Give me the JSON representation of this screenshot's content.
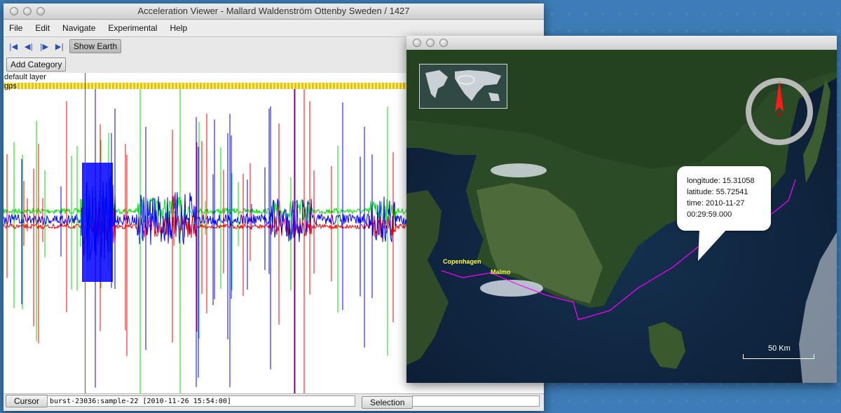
{
  "main_window": {
    "title": "Acceleration Viewer - Mallard Waldenström Ottenby Sweden / 1427",
    "menu": [
      "File",
      "Edit",
      "Navigate",
      "Experimental",
      "Help"
    ],
    "toolbar": {
      "nav_icons": [
        "skip-to-start-icon",
        "step-back-icon",
        "step-forward-icon",
        "skip-to-end-icon"
      ],
      "show_earth_label": "Show Earth",
      "add_category_label": "Add Category"
    },
    "layers": {
      "default_layer": "default layer",
      "gps": "gps"
    },
    "status": {
      "cursor_label": "Cursor",
      "cursor_value": "burst-23036:sample-22 [2010-11-26 15:54:00]",
      "selection_label": "Selection",
      "selection_value": ""
    },
    "colors": {
      "x_axis": "#ff0000",
      "y_axis": "#00e000",
      "z_axis": "#0000ff",
      "gps_band": "#e8c000"
    }
  },
  "earth_window": {
    "title": "",
    "labels": {
      "copenhagen": "Copenhagen",
      "malmo": "Malmo"
    },
    "callout": {
      "longitude": "longitude: 15.31058",
      "latitude": "latitude: 55.72541",
      "time": "time: 2010-11-27",
      "clock": "00:29:59.000"
    },
    "scale_label": "50 Km",
    "icons": [
      "world-overview-map",
      "compass-icon"
    ],
    "colors": {
      "track": "#ff00ff",
      "city_label": "#ffff33"
    }
  }
}
